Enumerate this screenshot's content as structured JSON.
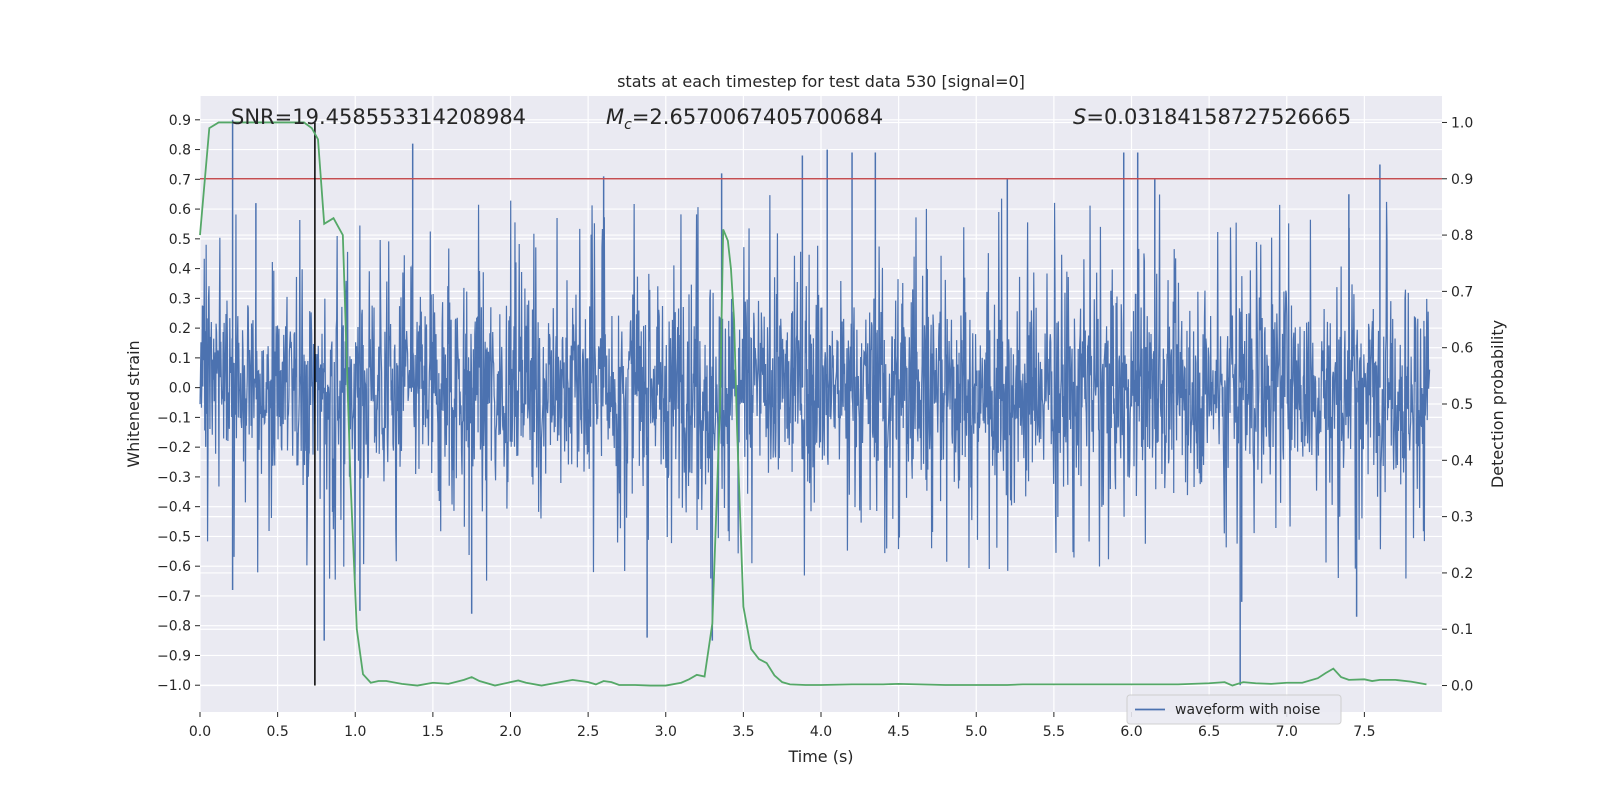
{
  "chart_data": {
    "type": "line",
    "title": "stats at each timestep for test data 530 [signal=0]",
    "xlabel": "Time (s)",
    "ylabel": "Whitened strain",
    "y2label": "Detection probability",
    "xlim": [
      0.0,
      8.0
    ],
    "ylim": [
      -1.09,
      0.98
    ],
    "y2lim": [
      -0.047,
      1.047
    ],
    "xticks": [
      "0.0",
      "0.5",
      "1.0",
      "1.5",
      "2.0",
      "2.5",
      "3.0",
      "3.5",
      "4.0",
      "4.5",
      "5.0",
      "5.5",
      "6.0",
      "6.5",
      "7.0",
      "7.5"
    ],
    "yticks": [
      "0.9",
      "0.8",
      "0.7",
      "0.6",
      "0.5",
      "0.4",
      "0.3",
      "0.2",
      "0.1",
      "0.0",
      "−0.1",
      "−0.2",
      "−0.3",
      "−0.4",
      "−0.5",
      "−0.6",
      "−0.7",
      "−0.8",
      "−0.9",
      "−1.0"
    ],
    "y2ticks": [
      "1.0",
      "0.9",
      "0.8",
      "0.7",
      "0.6",
      "0.5",
      "0.4",
      "0.3",
      "0.2",
      "0.1",
      "0.0"
    ],
    "grid": true,
    "legend": {
      "placement": "lower-right",
      "entries": [
        "waveform with noise"
      ]
    },
    "annotations": {
      "snr_prefix": "SNR=",
      "snr_value": "19.458553314208984",
      "mc_symbol": "M",
      "mc_sub": "c",
      "mc_value": "=2.6570067405700684",
      "s_symbol": "S",
      "s_value": "=0.03184158727526665"
    },
    "threshold": {
      "axis": "right",
      "y": 0.9,
      "color": "#c44e52"
    },
    "marker_line": {
      "x": 0.74,
      "color": "#000000"
    },
    "series": [
      {
        "name": "waveform with noise",
        "axis": "left",
        "color": "#4c72b0",
        "description": "whitened strain noise samples, envelope approx ±0.35 with spikes",
        "spikes": [
          [
            0.21,
            0.9
          ],
          [
            0.21,
            -0.68
          ],
          [
            0.8,
            -0.85
          ],
          [
            1.37,
            0.82
          ],
          [
            1.03,
            -0.75
          ],
          [
            1.75,
            -0.76
          ],
          [
            2.88,
            -0.84
          ],
          [
            3.36,
            0.72
          ],
          [
            3.3,
            -0.85
          ],
          [
            3.88,
            0.78
          ],
          [
            4.04,
            0.8
          ],
          [
            4.2,
            0.79
          ],
          [
            4.35,
            0.79
          ],
          [
            5.95,
            0.79
          ],
          [
            6.04,
            0.79
          ],
          [
            6.7,
            -1.0
          ],
          [
            6.71,
            -0.72
          ],
          [
            7.45,
            -0.77
          ],
          [
            7.6,
            0.75
          ],
          [
            6.15,
            0.7
          ],
          [
            5.2,
            0.7
          ],
          [
            0.36,
            0.62
          ],
          [
            2.6,
            0.71
          ],
          [
            7.4,
            0.65
          ]
        ]
      },
      {
        "name": "detection probability",
        "axis": "right",
        "color": "#55a868",
        "x": [
          0.0,
          0.06,
          0.12,
          0.2,
          0.3,
          0.4,
          0.5,
          0.6,
          0.67,
          0.72,
          0.76,
          0.8,
          0.86,
          0.92,
          0.97,
          1.01,
          1.05,
          1.1,
          1.15,
          1.2,
          1.3,
          1.4,
          1.5,
          1.6,
          1.7,
          1.75,
          1.8,
          1.9,
          2.0,
          2.05,
          2.1,
          2.2,
          2.3,
          2.4,
          2.5,
          2.55,
          2.6,
          2.65,
          2.7,
          2.8,
          2.9,
          3.0,
          3.1,
          3.15,
          3.2,
          3.25,
          3.3,
          3.35,
          3.37,
          3.4,
          3.42,
          3.44,
          3.46,
          3.5,
          3.55,
          3.6,
          3.65,
          3.7,
          3.75,
          3.8,
          3.9,
          4.0,
          4.2,
          4.4,
          4.5,
          4.8,
          5.0,
          5.2,
          5.3,
          5.6,
          5.8,
          6.0,
          6.3,
          6.5,
          6.6,
          6.65,
          6.72,
          6.8,
          6.9,
          7.0,
          7.1,
          7.2,
          7.25,
          7.3,
          7.35,
          7.4,
          7.5,
          7.55,
          7.6,
          7.7,
          7.8,
          7.9
        ],
        "y": [
          0.8,
          0.99,
          1.0,
          1.0,
          1.0,
          1.0,
          1.0,
          1.0,
          1.0,
          0.99,
          0.97,
          0.82,
          0.83,
          0.8,
          0.36,
          0.1,
          0.02,
          0.005,
          0.008,
          0.008,
          0.003,
          0.0,
          0.005,
          0.003,
          0.01,
          0.015,
          0.008,
          0.0,
          0.006,
          0.009,
          0.005,
          0.0,
          0.005,
          0.01,
          0.006,
          0.002,
          0.008,
          0.006,
          0.001,
          0.001,
          0.0,
          0.0,
          0.005,
          0.011,
          0.019,
          0.016,
          0.11,
          0.5,
          0.81,
          0.79,
          0.74,
          0.65,
          0.45,
          0.14,
          0.065,
          0.047,
          0.04,
          0.018,
          0.006,
          0.002,
          0.001,
          0.001,
          0.002,
          0.002,
          0.003,
          0.001,
          0.001,
          0.001,
          0.002,
          0.002,
          0.002,
          0.002,
          0.002,
          0.004,
          0.006,
          0.0,
          0.006,
          0.004,
          0.003,
          0.005,
          0.005,
          0.013,
          0.022,
          0.03,
          0.015,
          0.01,
          0.011,
          0.008,
          0.01,
          0.01,
          0.007,
          0.002
        ]
      }
    ]
  }
}
